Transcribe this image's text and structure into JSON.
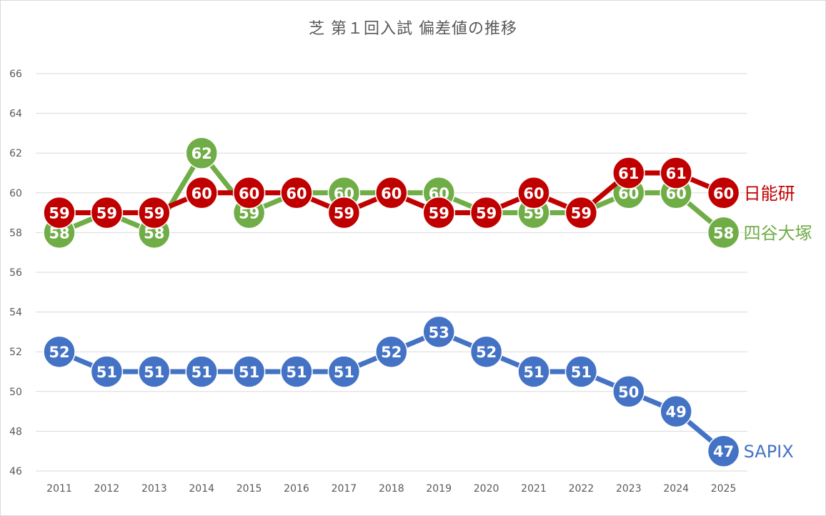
{
  "chart_data": {
    "type": "line",
    "title": "芝 第１回入試 偏差値の推移",
    "xlabel": "",
    "ylabel": "",
    "x": [
      "2011",
      "2012",
      "2013",
      "2014",
      "2015",
      "2016",
      "2017",
      "2018",
      "2019",
      "2020",
      "2021",
      "2022",
      "2023",
      "2024",
      "2025"
    ],
    "ylim": [
      46,
      66
    ],
    "yticks": [
      "46",
      "48",
      "50",
      "52",
      "54",
      "56",
      "58",
      "60",
      "62",
      "64",
      "66"
    ],
    "grid": true,
    "series": [
      {
        "name": "四谷大塚",
        "color": "#70ad47",
        "values": [
          58,
          59,
          58,
          62,
          59,
          60,
          60,
          60,
          60,
          59,
          59,
          59,
          60,
          60,
          58
        ]
      },
      {
        "name": "日能研",
        "color": "#c00000",
        "values": [
          59,
          59,
          59,
          60,
          60,
          60,
          59,
          60,
          59,
          59,
          60,
          59,
          61,
          61,
          60
        ]
      },
      {
        "name": "SAPIX",
        "color": "#4472c4",
        "values": [
          52,
          51,
          51,
          51,
          51,
          51,
          51,
          52,
          53,
          52,
          51,
          51,
          50,
          49,
          47
        ]
      }
    ]
  }
}
